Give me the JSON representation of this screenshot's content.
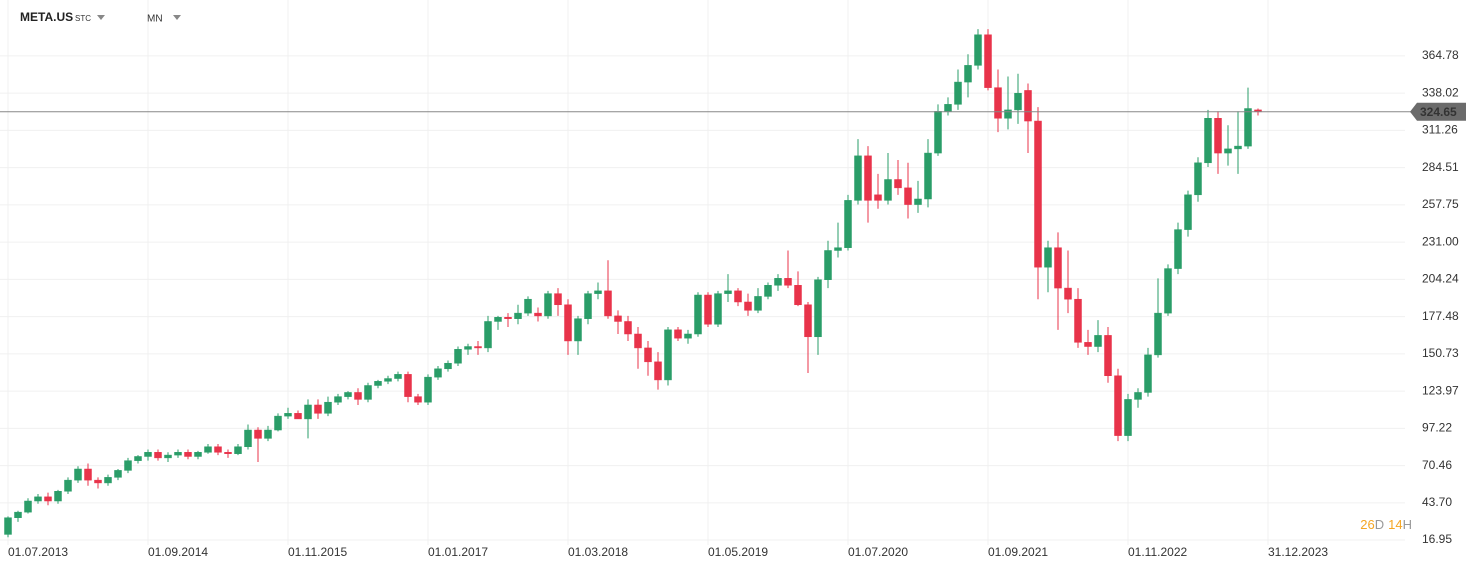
{
  "header": {
    "symbol": "META.US",
    "instrument_type": "STC",
    "interval": "MN"
  },
  "chart_data": {
    "type": "candlestick",
    "up_color": "#2a9d68",
    "down_color": "#e8334a",
    "grid": true,
    "open": [
      21,
      33,
      37,
      45,
      48,
      45,
      52,
      60,
      68,
      60,
      58,
      62,
      67,
      74,
      77,
      80,
      76,
      78,
      80,
      77,
      80,
      84,
      80,
      79,
      84,
      96,
      90,
      96,
      106,
      108,
      104,
      114,
      108,
      116,
      120,
      123,
      118,
      128,
      131,
      133,
      136,
      120,
      116,
      134,
      140,
      144,
      154,
      156,
      155,
      174,
      177,
      176,
      180,
      180,
      178,
      194,
      186,
      160,
      176,
      194,
      196,
      178,
      174,
      165,
      155,
      145,
      132,
      168,
      162,
      165,
      193,
      172,
      194,
      196,
      188,
      182,
      192,
      200,
      205,
      200,
      186,
      163,
      204,
      225,
      227,
      261,
      293,
      265,
      261,
      276,
      270,
      258,
      262,
      295,
      325,
      330,
      346,
      358,
      380,
      342,
      320,
      326,
      340,
      318,
      213,
      227,
      198,
      190,
      159,
      156,
      164,
      135,
      92,
      118,
      123,
      150,
      180,
      212,
      240,
      265,
      288,
      320,
      295,
      298,
      300,
      326
    ],
    "high": [
      34,
      38,
      47,
      50,
      51,
      53,
      62,
      70,
      72,
      62,
      64,
      68,
      76,
      78,
      82,
      82,
      80,
      82,
      82,
      81,
      86,
      86,
      82,
      86,
      100,
      98,
      99,
      108,
      112,
      110,
      118,
      118,
      120,
      122,
      124,
      126,
      130,
      132,
      135,
      138,
      138,
      122,
      136,
      142,
      146,
      156,
      158,
      160,
      178,
      178,
      180,
      186,
      192,
      184,
      196,
      198,
      190,
      178,
      196,
      202,
      218,
      182,
      178,
      170,
      160,
      152,
      170,
      170,
      168,
      195,
      195,
      196,
      208,
      198,
      194,
      198,
      202,
      208,
      225,
      210,
      188,
      206,
      232,
      245,
      265,
      305,
      300,
      280,
      295,
      290,
      288,
      275,
      305,
      330,
      335,
      355,
      366,
      384,
      384,
      355,
      350,
      352,
      345,
      328,
      232,
      238,
      225,
      198,
      168,
      175,
      170,
      140,
      122,
      126,
      155,
      205,
      215,
      245,
      268,
      292,
      326,
      325,
      315,
      325,
      342,
      327
    ],
    "low": [
      19,
      30,
      36,
      43,
      42,
      43,
      50,
      58,
      56,
      54,
      56,
      60,
      65,
      72,
      74,
      74,
      73,
      76,
      75,
      75,
      79,
      78,
      76,
      78,
      82,
      73,
      88,
      95,
      104,
      104,
      90,
      104,
      106,
      114,
      118,
      114,
      116,
      126,
      129,
      131,
      116,
      114,
      114,
      132,
      138,
      142,
      150,
      150,
      152,
      168,
      170,
      172,
      178,
      174,
      176,
      178,
      150,
      150,
      172,
      190,
      176,
      165,
      160,
      140,
      135,
      125,
      128,
      160,
      158,
      163,
      170,
      170,
      188,
      185,
      178,
      180,
      190,
      196,
      198,
      185,
      137,
      150,
      198,
      220,
      225,
      258,
      245,
      255,
      258,
      265,
      248,
      252,
      256,
      293,
      322,
      326,
      335,
      355,
      340,
      310,
      312,
      316,
      295,
      190,
      195,
      168,
      180,
      155,
      150,
      152,
      130,
      88,
      88,
      112,
      120,
      148,
      178,
      208,
      235,
      260,
      285,
      280,
      286,
      280,
      298,
      322
    ],
    "close": [
      33,
      37,
      45,
      48,
      45,
      52,
      60,
      68,
      60,
      58,
      62,
      67,
      74,
      77,
      80,
      76,
      78,
      80,
      77,
      80,
      84,
      80,
      79,
      84,
      96,
      90,
      96,
      106,
      108,
      104,
      114,
      108,
      116,
      120,
      123,
      118,
      128,
      131,
      133,
      136,
      120,
      116,
      134,
      140,
      144,
      154,
      156,
      155,
      174,
      177,
      176,
      180,
      190,
      178,
      194,
      186,
      160,
      176,
      194,
      196,
      178,
      174,
      165,
      155,
      145,
      132,
      168,
      162,
      165,
      193,
      172,
      194,
      196,
      188,
      182,
      192,
      200,
      205,
      200,
      186,
      163,
      204,
      225,
      227,
      261,
      293,
      261,
      261,
      276,
      270,
      258,
      262,
      295,
      325,
      330,
      346,
      358,
      380,
      342,
      320,
      326,
      338,
      318,
      213,
      227,
      198,
      190,
      159,
      156,
      164,
      135,
      92,
      118,
      123,
      150,
      180,
      212,
      240,
      265,
      288,
      320,
      295,
      298,
      300,
      327,
      324.65
    ],
    "last_price": 324.65,
    "countdown": [
      "26",
      "D",
      "14",
      "H"
    ],
    "xlim": [
      -0.8,
      139.7
    ],
    "xticks": [
      {
        "value": 0,
        "label": "01.07.2013"
      },
      {
        "value": 14,
        "label": "01.09.2014"
      },
      {
        "value": 28,
        "label": "01.11.2015"
      },
      {
        "value": 42,
        "label": "01.01.2017"
      },
      {
        "value": 56,
        "label": "01.03.2018"
      },
      {
        "value": 70,
        "label": "01.05.2019"
      },
      {
        "value": 84,
        "label": "01.07.2020"
      },
      {
        "value": 98,
        "label": "01.09.2021"
      },
      {
        "value": 112,
        "label": "01.11.2022"
      },
      {
        "value": 126,
        "label": "31.12.2023"
      }
    ],
    "ylim": [
      13.4,
      390.6
    ],
    "yticks": [
      16.95,
      {
        "value": 43.7,
        "label": "43.70"
      },
      70.46,
      97.22,
      123.97,
      150.73,
      177.48,
      204.24,
      {
        "value": 231,
        "label": "231.00"
      },
      257.75,
      284.51,
      311.26,
      338.02,
      364.78
    ]
  }
}
